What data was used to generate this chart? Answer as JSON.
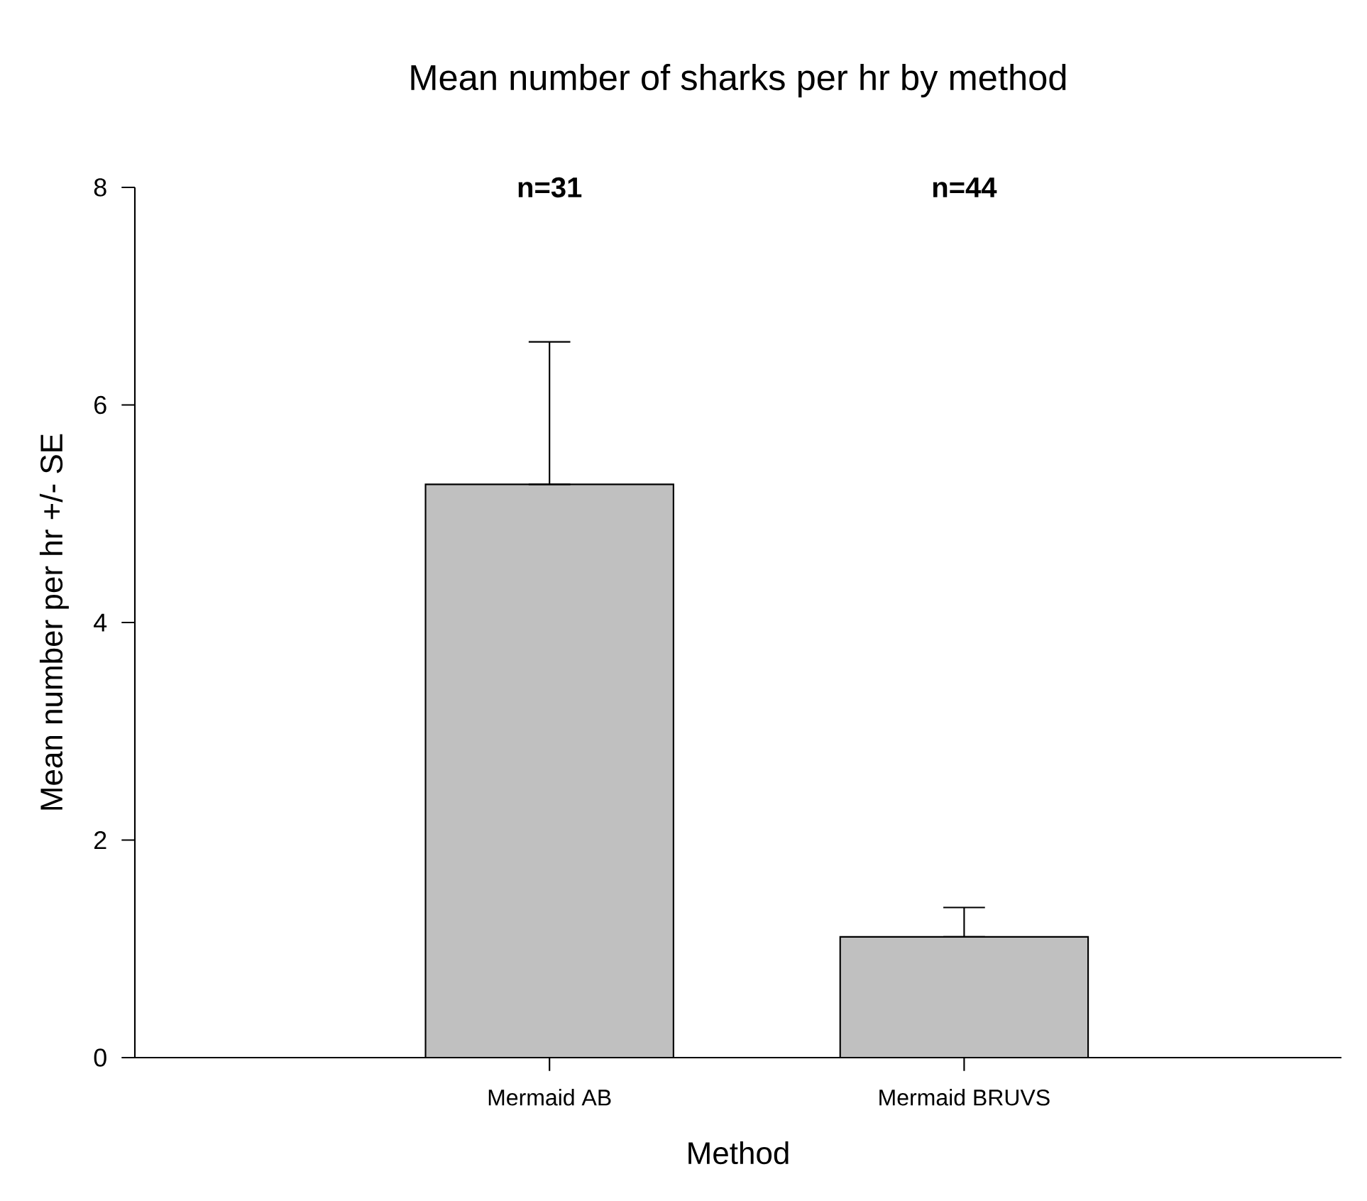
{
  "chart_data": {
    "type": "bar",
    "title": "Mean number of sharks per hr by method",
    "xlabel": "Method",
    "ylabel": "Mean number per hr +/- SE",
    "categories": [
      "Mermaid AB",
      "Mermaid BRUVS"
    ],
    "values": [
      5.27,
      1.11
    ],
    "errors": [
      [
        5.27,
        6.58
      ],
      [
        1.11,
        1.38
      ]
    ],
    "color": "#c0c0c0",
    "ylim": [
      0,
      8
    ],
    "yticks": [
      0,
      2,
      4,
      6,
      8
    ],
    "grid": false,
    "annotations": [
      "n=31",
      "n=44"
    ]
  }
}
